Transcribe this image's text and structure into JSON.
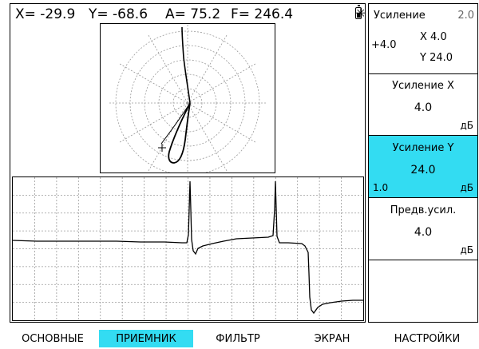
{
  "readout": {
    "x": "X= -29.9",
    "y": "Y= -68.6",
    "a": "A=  75.2",
    "f": "F= 246.4"
  },
  "status": {
    "star_icon": "✳",
    "battery_icon": "battery-icon"
  },
  "gain_header": {
    "title": "Усиление",
    "step": "2.0",
    "offset": "+4.0",
    "x_value": "X 4.0",
    "y_value": "Y 24.0"
  },
  "params": [
    {
      "label": "Усиление X",
      "value": "4.0",
      "unit": "дБ",
      "step": "",
      "selected": false
    },
    {
      "label": "Усиление Y",
      "value": "24.0",
      "unit": "дБ",
      "step": "1.0",
      "selected": true
    },
    {
      "label": "Предв.усил.",
      "value": "4.0",
      "unit": "дБ",
      "step": "",
      "selected": false
    }
  ],
  "tabs": [
    {
      "label": "ОСНОВНЫЕ",
      "active": false
    },
    {
      "label": "ПРИЕМНИК",
      "active": true
    },
    {
      "label": "ФИЛЬТР",
      "active": false
    },
    {
      "label": "ЭКРАН",
      "active": false
    },
    {
      "label": "НАСТРОЙКИ",
      "active": false
    }
  ],
  "colors": {
    "accent": "#33dcf2",
    "grid": "#9a9a9a",
    "trace": "#000000"
  }
}
